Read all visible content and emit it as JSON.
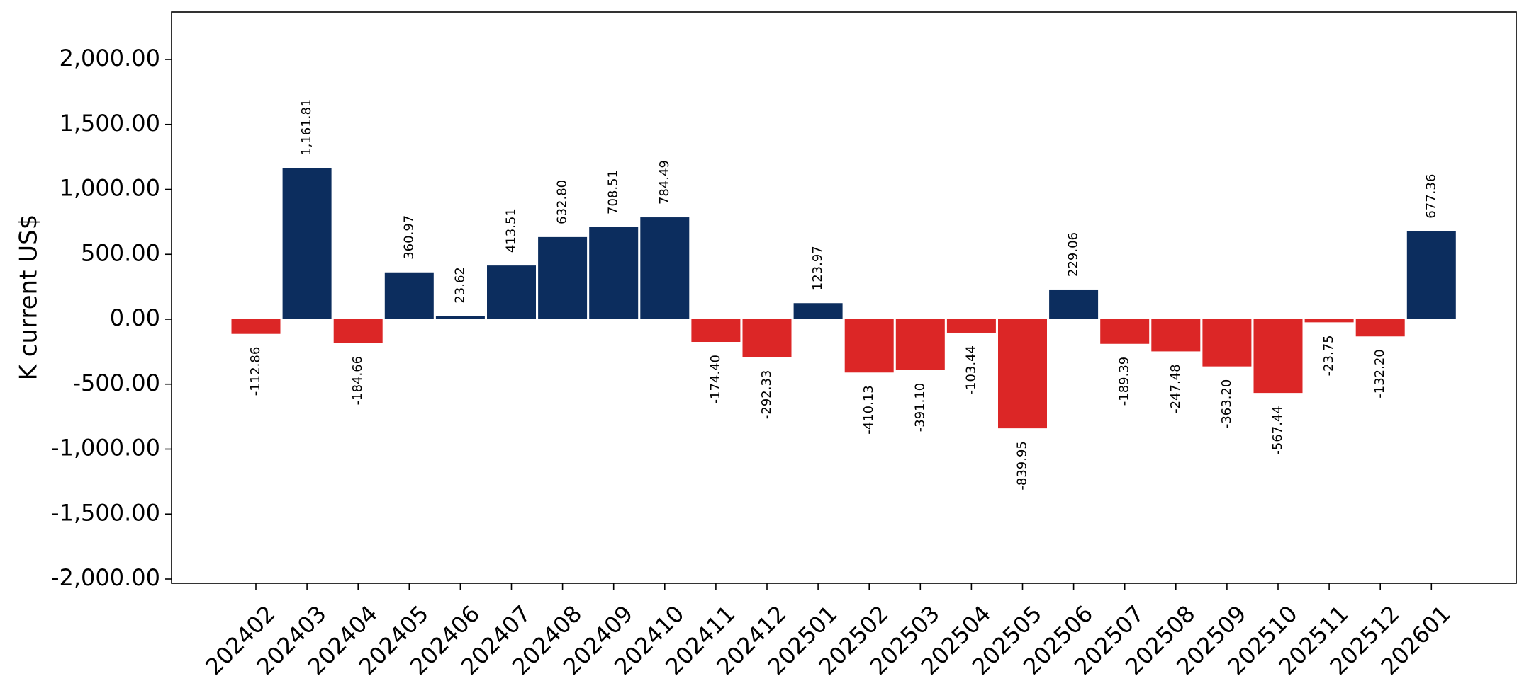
{
  "chart_data": {
    "type": "bar",
    "ylabel": "K current US$",
    "ylim": [
      -2000,
      2000
    ],
    "categories": [
      "202402",
      "202403",
      "202404",
      "202405",
      "202406",
      "202407",
      "202408",
      "202409",
      "202410",
      "202411",
      "202412",
      "202501",
      "202502",
      "202503",
      "202504",
      "202505",
      "202506",
      "202507",
      "202508",
      "202509",
      "202510",
      "202511",
      "202512",
      "202601"
    ],
    "values": [
      -112.86,
      1161.81,
      -184.66,
      360.97,
      23.62,
      413.51,
      632.8,
      708.51,
      784.49,
      -174.4,
      -292.33,
      123.97,
      -410.13,
      -391.1,
      -103.44,
      -839.95,
      229.06,
      -189.39,
      -247.48,
      -363.2,
      -567.44,
      -23.75,
      -132.2,
      677.36
    ],
    "value_labels": [
      "-112.86",
      "1,161.81",
      "-184.66",
      "360.97",
      "23.62",
      "413.51",
      "632.80",
      "708.51",
      "784.49",
      "-174.40",
      "-292.33",
      "123.97",
      "-410.13",
      "-391.10",
      "-103.44",
      "-839.95",
      "229.06",
      "-189.39",
      "-247.48",
      "-363.20",
      "-567.44",
      "-23.75",
      "-132.20",
      "677.36"
    ],
    "y_ticks": [
      2000,
      1500,
      1000,
      500,
      0,
      -500,
      -1000,
      -1500,
      -2000
    ],
    "y_tick_labels": [
      "2,000.00",
      "1,500.00",
      "1,000.00",
      "500.00",
      "0.00",
      "-500.00",
      "-1,000.00",
      "-1,500.00",
      "-2,000.00"
    ],
    "colors": {
      "positive": "#0c2d5e",
      "negative": "#dc2626",
      "axis": "#000000"
    },
    "grid": false,
    "legend": "none"
  }
}
